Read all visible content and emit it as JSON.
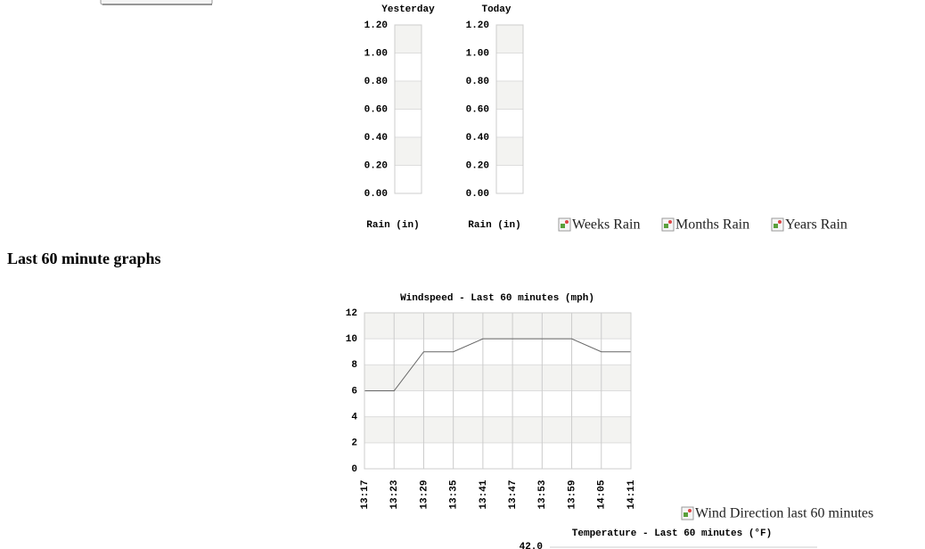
{
  "chart_data": [
    {
      "type": "bar",
      "title": "Yesterday",
      "xlabel": "Rain (in)",
      "values": [
        0
      ],
      "color": "#4a7fc1",
      "ylim": [
        0,
        1.2
      ],
      "yticks": [
        {
          "value": 0,
          "label": "0.00"
        },
        {
          "value": 0.2,
          "label": "0.20"
        },
        {
          "value": 0.4,
          "label": "0.40"
        },
        {
          "value": 0.6,
          "label": "0.60"
        },
        {
          "value": 0.8,
          "label": "0.80"
        },
        {
          "value": 1.0,
          "label": "1.00"
        },
        {
          "value": 1.2,
          "label": "1.20"
        }
      ]
    },
    {
      "type": "bar",
      "title": "Today",
      "xlabel": "Rain (in)",
      "values": [
        0
      ],
      "color": "#4a7fc1",
      "ylim": [
        0,
        1.2
      ],
      "yticks": [
        {
          "value": 0,
          "label": "0.00"
        },
        {
          "value": 0.2,
          "label": "0.20"
        },
        {
          "value": 0.4,
          "label": "0.40"
        },
        {
          "value": 0.6,
          "label": "0.60"
        },
        {
          "value": 0.8,
          "label": "0.80"
        },
        {
          "value": 1.0,
          "label": "1.00"
        },
        {
          "value": 1.2,
          "label": "1.20"
        }
      ]
    },
    {
      "type": "line",
      "title": "Windspeed - Last 60 minutes (mph)",
      "categories": [
        "13:17",
        "13:23",
        "13:29",
        "13:35",
        "13:41",
        "13:47",
        "13:53",
        "13:59",
        "14:05",
        "14:11"
      ],
      "values": [
        6,
        6,
        9,
        9,
        10,
        10,
        10,
        10,
        9,
        9
      ],
      "color": "#666666",
      "ylim": [
        0,
        12
      ],
      "yticks": [
        0,
        2,
        4,
        6,
        8,
        10,
        12
      ],
      "grid": true
    },
    {
      "type": "line",
      "title": "Temperature - Last 60 minutes (°F)",
      "yticks": [
        {
          "value": 42,
          "label": "42.0"
        }
      ]
    }
  ],
  "heading": "Last 60 minute graphs",
  "images": [
    "Weeks Rain",
    "Months Rain",
    "Years Rain",
    "Wind Direction last 60 minutes"
  ]
}
